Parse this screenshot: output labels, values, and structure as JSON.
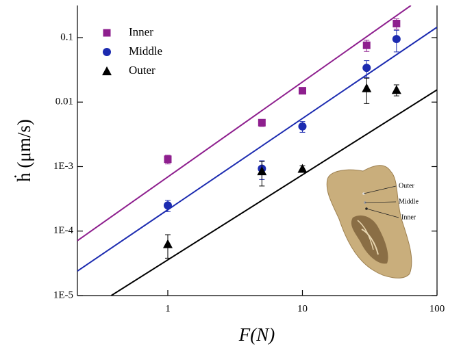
{
  "chart_data": {
    "type": "scatter",
    "xscale": "log",
    "yscale": "log",
    "xlabel": "F(N)",
    "ylabel": "ḣ (μm/s)",
    "xlim": [
      0.213,
      100
    ],
    "ylim": [
      1e-05,
      0.315
    ],
    "xticks": [
      1,
      10,
      100
    ],
    "yticks": [
      {
        "value": 1e-05,
        "label": "1E-5"
      },
      {
        "value": 0.0001,
        "label": "1E-4"
      },
      {
        "value": 0.001,
        "label": "1E-3"
      },
      0.01,
      0.1
    ],
    "legend": "upper left",
    "x": [
      1,
      5,
      10,
      30,
      50
    ],
    "series": [
      {
        "name": "Inner",
        "color": "#8e1f8e",
        "marker": "square",
        "values": [
          0.0013,
          0.0048,
          0.015,
          0.076,
          0.165
        ],
        "errors": [
          0.0002,
          0.0006,
          0.001,
          0.015,
          0.03
        ]
      },
      {
        "name": "Middle",
        "color": "#1c2bb0",
        "marker": "circle",
        "values": [
          0.00025,
          0.00093,
          0.0042,
          0.034,
          0.095
        ],
        "errors": [
          5e-05,
          0.0003,
          0.0008,
          0.01,
          0.035
        ]
      },
      {
        "name": "Outer",
        "color": "#000000",
        "marker": "triangle",
        "values": [
          6.3e-05,
          0.00085,
          0.00093,
          0.0165,
          0.0155
        ],
        "errors": [
          2.5e-05,
          0.00035,
          0.0001,
          0.007,
          0.003
        ]
      }
    ],
    "fits": [
      {
        "color": "#8e1f8e",
        "x": [
          0.213,
          64
        ],
        "values": [
          7.1e-05,
          0.315
        ]
      },
      {
        "color": "#1c2bb0",
        "x": [
          0.213,
          100
        ],
        "values": [
          2.4e-05,
          0.145
        ]
      },
      {
        "color": "#000000",
        "x": [
          0.38,
          100
        ],
        "values": [
          1e-05,
          0.0155
        ]
      }
    ],
    "inset_labels": [
      "Outer",
      "Middle",
      "Inner"
    ]
  }
}
